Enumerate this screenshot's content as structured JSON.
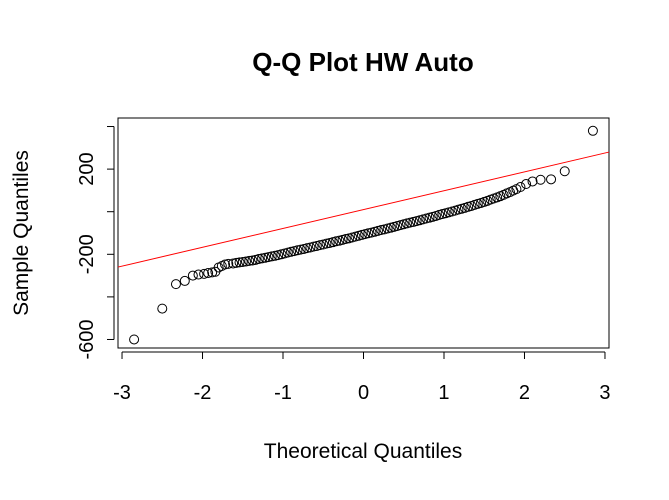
{
  "chart_data": {
    "type": "scatter",
    "title": "Q-Q Plot HW Auto",
    "xlabel": "Theoretical Quantiles",
    "ylabel": "Sample Quantiles",
    "xlim": [
      -3.05,
      3.05
    ],
    "ylim": [
      -640,
      440
    ],
    "x_ticks": [
      -3,
      -2,
      -1,
      0,
      1,
      2,
      3
    ],
    "x_tick_labels": [
      "-3",
      "-2",
      "-1",
      "0",
      "1",
      "2",
      "3"
    ],
    "y_ticks": [
      -600,
      -400,
      -200,
      0,
      200,
      400
    ],
    "y_tick_labels": [
      "-600",
      "",
      "-200",
      "",
      "200",
      ""
    ],
    "grid": false,
    "legend": "none",
    "point_color": "#000000",
    "line_color": "#ff0000",
    "reference_line": {
      "x": [
        -3.05,
        3.05
      ],
      "y": [
        -260,
        280
      ]
    },
    "points": {
      "x": [
        -2.85,
        -2.5,
        -2.33,
        -2.22,
        -2.12,
        -2.05,
        -1.98,
        -1.93,
        -1.88,
        -1.84,
        -1.8,
        -1.76,
        -1.72,
        -1.68,
        -1.62,
        -1.58,
        -1.54,
        -1.5,
        -1.46,
        -1.42,
        -1.38,
        -1.34,
        -1.3,
        -1.26,
        -1.22,
        -1.18,
        -1.14,
        -1.1,
        -1.06,
        -1.02,
        -0.98,
        -0.94,
        -0.9,
        -0.86,
        -0.82,
        -0.78,
        -0.74,
        -0.7,
        -0.66,
        -0.62,
        -0.58,
        -0.54,
        -0.5,
        -0.46,
        -0.42,
        -0.38,
        -0.34,
        -0.3,
        -0.26,
        -0.22,
        -0.18,
        -0.14,
        -0.1,
        -0.06,
        -0.02,
        0.02,
        0.06,
        0.1,
        0.14,
        0.18,
        0.22,
        0.26,
        0.3,
        0.34,
        0.38,
        0.42,
        0.46,
        0.5,
        0.54,
        0.58,
        0.62,
        0.66,
        0.7,
        0.74,
        0.78,
        0.82,
        0.86,
        0.9,
        0.94,
        0.98,
        1.02,
        1.06,
        1.1,
        1.14,
        1.18,
        1.22,
        1.26,
        1.3,
        1.34,
        1.38,
        1.42,
        1.46,
        1.5,
        1.54,
        1.58,
        1.62,
        1.66,
        1.7,
        1.74,
        1.78,
        1.82,
        1.86,
        1.9,
        1.95,
        2.02,
        2.1,
        2.2,
        2.33,
        2.5,
        2.85
      ],
      "y": [
        -600,
        -455,
        -340,
        -325,
        -300,
        -295,
        -292,
        -288,
        -285,
        -282,
        -262,
        -255,
        -248,
        -245,
        -243,
        -240,
        -238,
        -236,
        -234,
        -231,
        -229,
        -226,
        -222,
        -219,
        -216,
        -213,
        -210,
        -207,
        -204,
        -200,
        -196,
        -192,
        -188,
        -185,
        -181,
        -178,
        -175,
        -171,
        -168,
        -164,
        -161,
        -157,
        -154,
        -150,
        -147,
        -143,
        -139,
        -136,
        -132,
        -128,
        -125,
        -121,
        -117,
        -113,
        -109,
        -105,
        -101,
        -98,
        -94,
        -90,
        -86,
        -83,
        -79,
        -75,
        -71,
        -67,
        -63,
        -59,
        -55,
        -51,
        -48,
        -44,
        -40,
        -36,
        -32,
        -28,
        -24,
        -20,
        -15,
        -11,
        -7,
        -3,
        1,
        5,
        10,
        14,
        18,
        23,
        27,
        32,
        37,
        41,
        46,
        51,
        57,
        62,
        67,
        73,
        79,
        86,
        92,
        99,
        106,
        116,
        130,
        142,
        150,
        152,
        190,
        380
      ]
    }
  }
}
